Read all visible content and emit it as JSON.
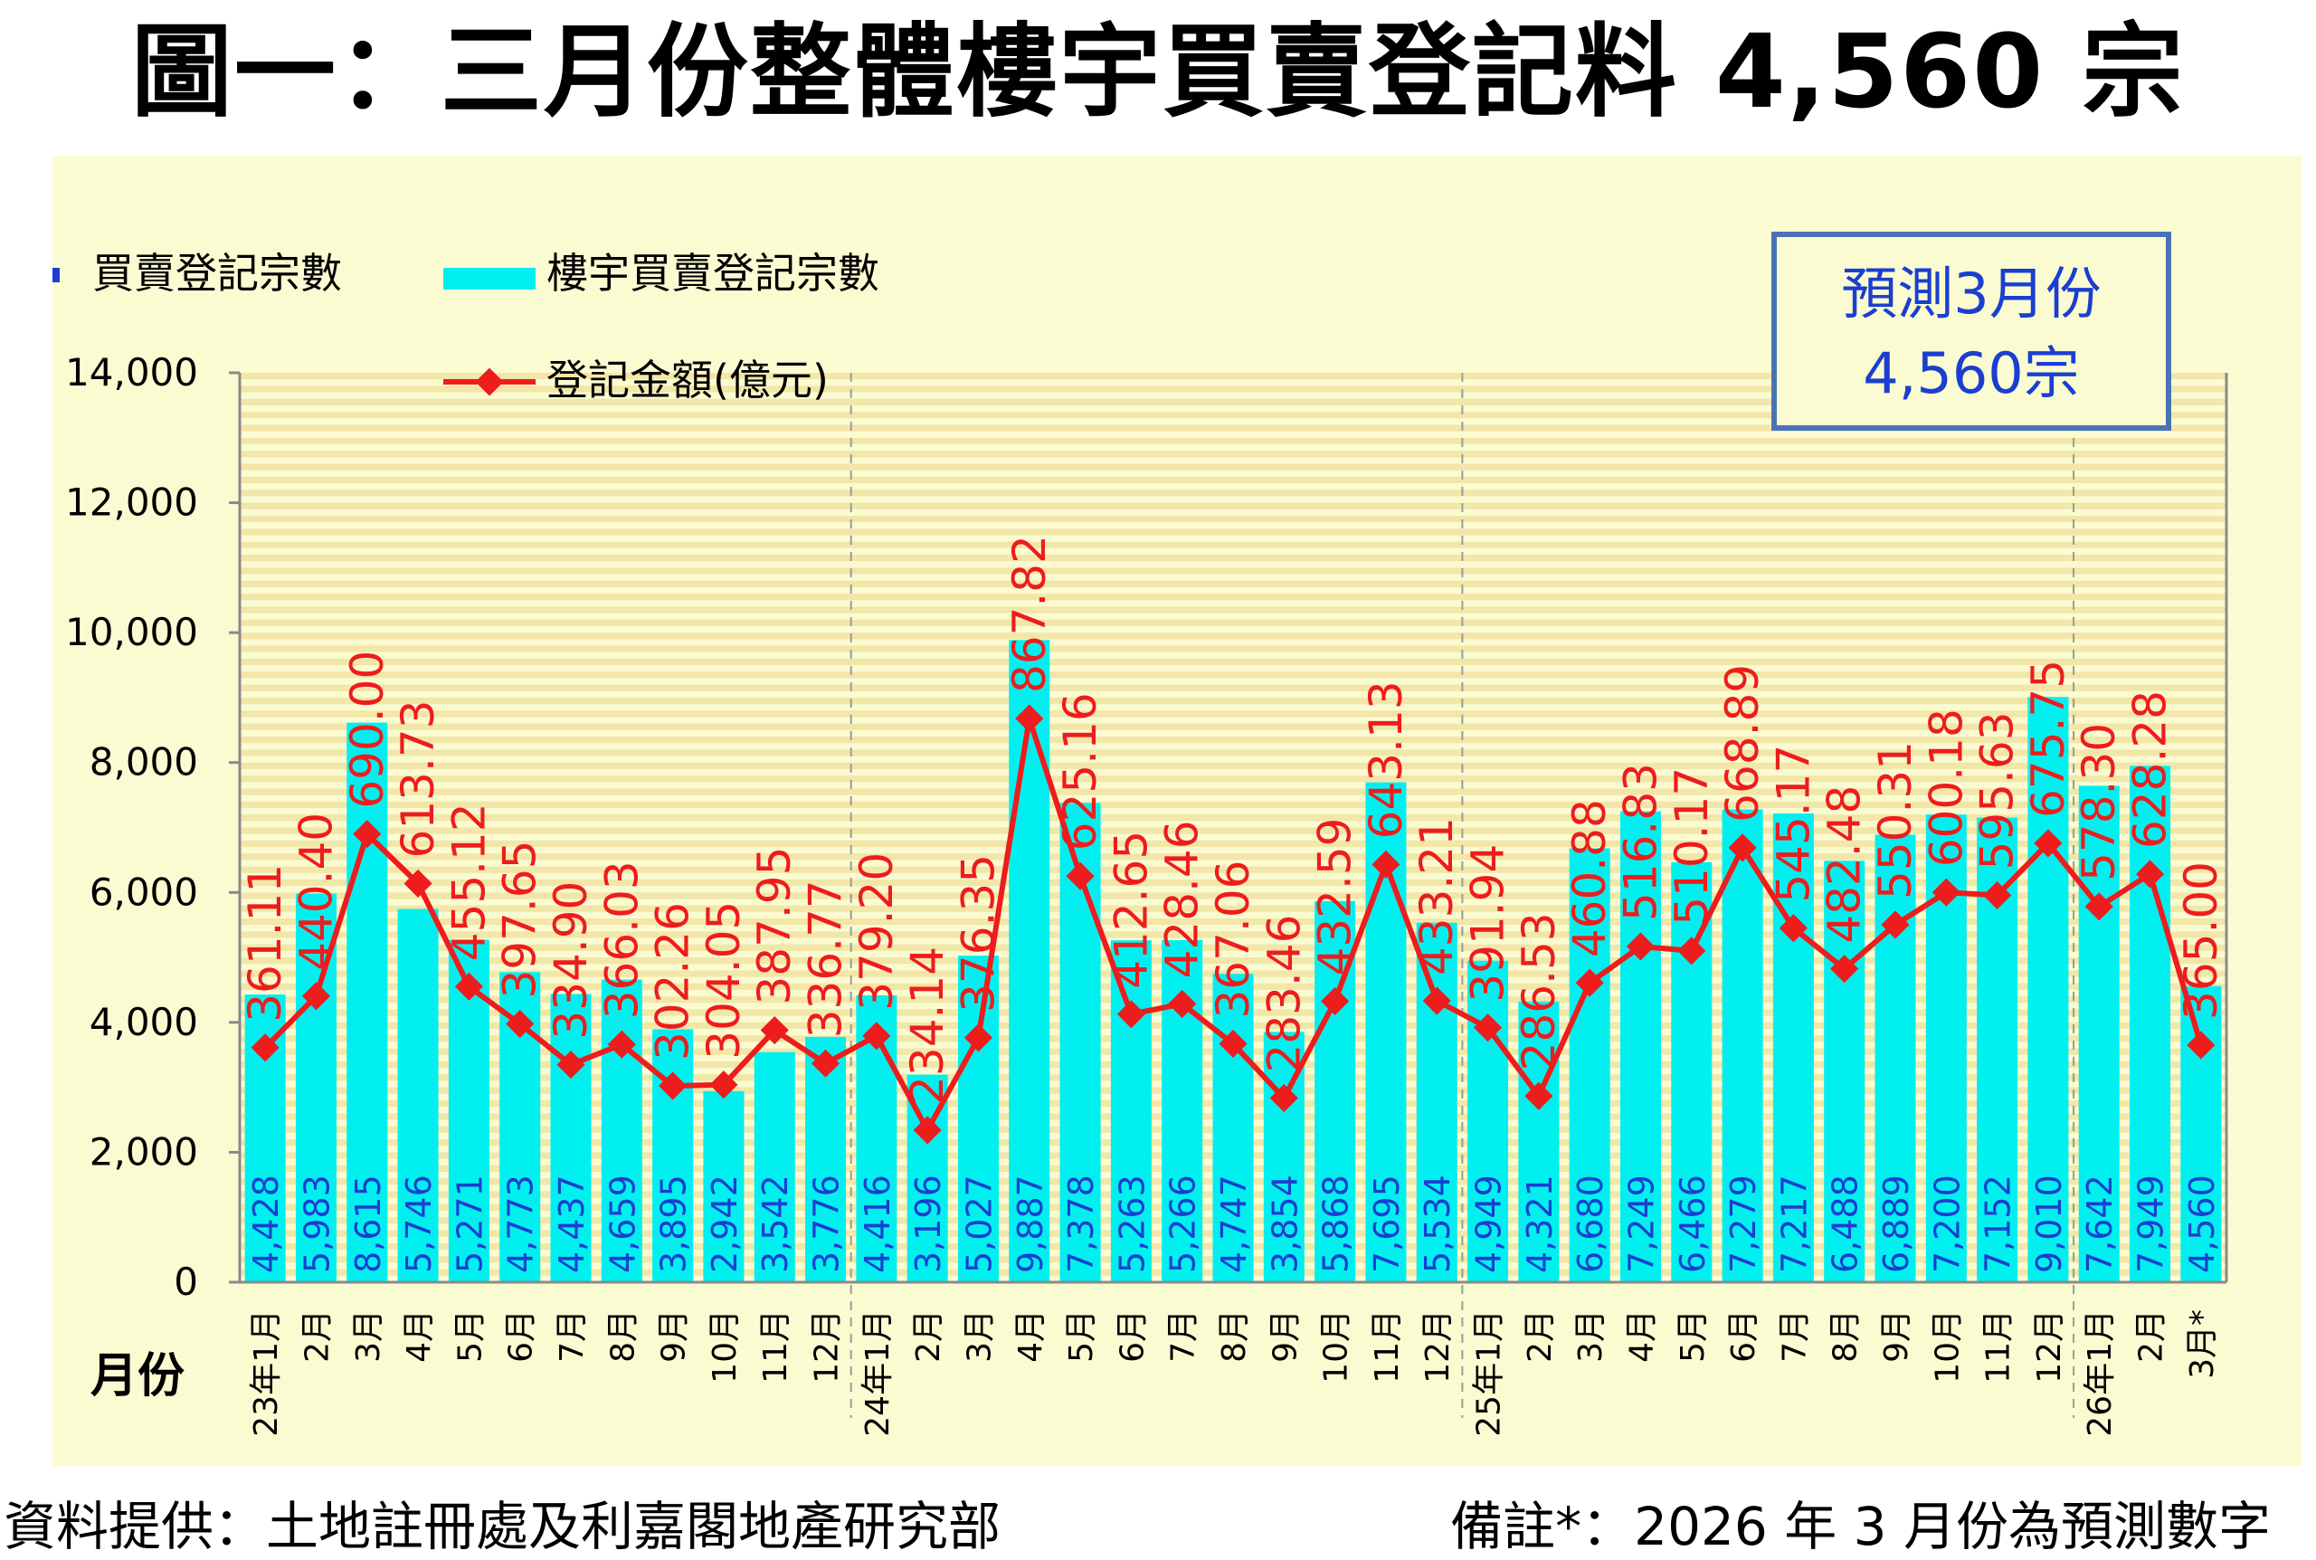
{
  "title": "圖一：三月份整體樓宇買賣登記料 4,560 宗",
  "source": "資料提供：土地註冊處及利嘉閣地產研究部",
  "remark": "備註*：2026 年 3 月份為預測數字",
  "colors": {
    "bar": "#00f0f0",
    "bar_label": "#1a3fd0",
    "line": "#ee1c1c",
    "line_label": "#ee1c1c",
    "stripe": "#f2e6a8",
    "panel": "#fbfbd2",
    "callout_border": "#4a73b6",
    "callout_text": "#1a3fd0"
  },
  "chart_data": {
    "type": "bar+line",
    "ylabel_left": "買賣登記宗數",
    "xlabel": "月份",
    "ylim": [
      0,
      14000
    ],
    "yticks": [
      0,
      2000,
      4000,
      6000,
      8000,
      10000,
      12000,
      14000
    ],
    "ytick_labels": [
      "0",
      "2,000",
      "4,000",
      "6,000",
      "8,000",
      "10,000",
      "12,000",
      "14,000"
    ],
    "line_ylim": [
      0,
      1400
    ],
    "grid": "horizontal-stripes",
    "legend": {
      "bar": "樓宇買賣登記宗數",
      "line": "登記金額(億元)",
      "placement": "top-left"
    },
    "callout": {
      "line1": "預測3月份",
      "line2": "4,560宗"
    },
    "year_separators_after": [
      11,
      23,
      35
    ],
    "categories": [
      "23年1月",
      "2月",
      "3月",
      "4月",
      "5月",
      "6月",
      "7月",
      "8月",
      "9月",
      "10月",
      "11月",
      "12月",
      "24年1月",
      "2月",
      "3月",
      "4月",
      "5月",
      "6月",
      "7月",
      "8月",
      "9月",
      "10月",
      "11月",
      "12月",
      "25年1月",
      "2月",
      "3月",
      "4月",
      "5月",
      "6月",
      "7月",
      "8月",
      "9月",
      "10月",
      "11月",
      "12月",
      "26年1月",
      "2月",
      "3月*"
    ],
    "series": [
      {
        "name": "樓宇買賣登記宗數",
        "type": "bar",
        "values": [
          4428,
          5983,
          8615,
          5746,
          5271,
          4773,
          4437,
          4659,
          3895,
          2942,
          3542,
          3776,
          4416,
          3196,
          5027,
          9887,
          7378,
          5263,
          5266,
          4747,
          3854,
          5868,
          7695,
          5534,
          4949,
          4321,
          6680,
          7249,
          6466,
          7279,
          7217,
          6488,
          6889,
          7200,
          7152,
          9010,
          7642,
          7949,
          4560
        ],
        "labels": [
          "4,428",
          "5,983",
          "8,615",
          "5,746",
          "5,271",
          "4,773",
          "4,437",
          "4,659",
          "3,895",
          "2,942",
          "3,542",
          "3,776",
          "4,416",
          "3,196",
          "5,027",
          "9,887",
          "7,378",
          "5,263",
          "5,266",
          "4,747",
          "3,854",
          "5,868",
          "7,695",
          "5,534",
          "4,949",
          "4,321",
          "6,680",
          "7,249",
          "6,466",
          "7,279",
          "7,217",
          "6,488",
          "6,889",
          "7,200",
          "7,152",
          "9,010",
          "7,642",
          "7,949",
          "4,560"
        ]
      },
      {
        "name": "登記金額(億元)",
        "type": "line",
        "values": [
          361.11,
          440.4,
          690.0,
          613.73,
          455.12,
          397.65,
          334.9,
          366.03,
          302.26,
          304.05,
          387.95,
          336.77,
          379.2,
          234.14,
          376.35,
          867.82,
          625.16,
          412.65,
          428.46,
          367.06,
          283.46,
          432.59,
          643.13,
          433.21,
          391.94,
          286.53,
          460.88,
          516.83,
          510.17,
          668.89,
          545.17,
          482.48,
          550.31,
          600.18,
          595.63,
          675.75,
          578.3,
          628.28,
          365.0
        ],
        "labels": [
          "361.11",
          "440.40",
          "690.00",
          "613.73",
          "455.12",
          "397.65",
          "334.90",
          "366.03",
          "302.26",
          "304.05",
          "387.95",
          "336.77",
          "379.20",
          "234.14",
          "376.35",
          "867.82",
          "625.16",
          "412.65",
          "428.46",
          "367.06",
          "283.46",
          "432.59",
          "643.13",
          "433.21",
          "391.94",
          "286.53",
          "460.88",
          "516.83",
          "510.17",
          "668.89",
          "545.17",
          "482.48",
          "550.31",
          "600.18",
          "595.63",
          "675.75",
          "578.30",
          "628.28",
          "365.00"
        ]
      }
    ]
  }
}
